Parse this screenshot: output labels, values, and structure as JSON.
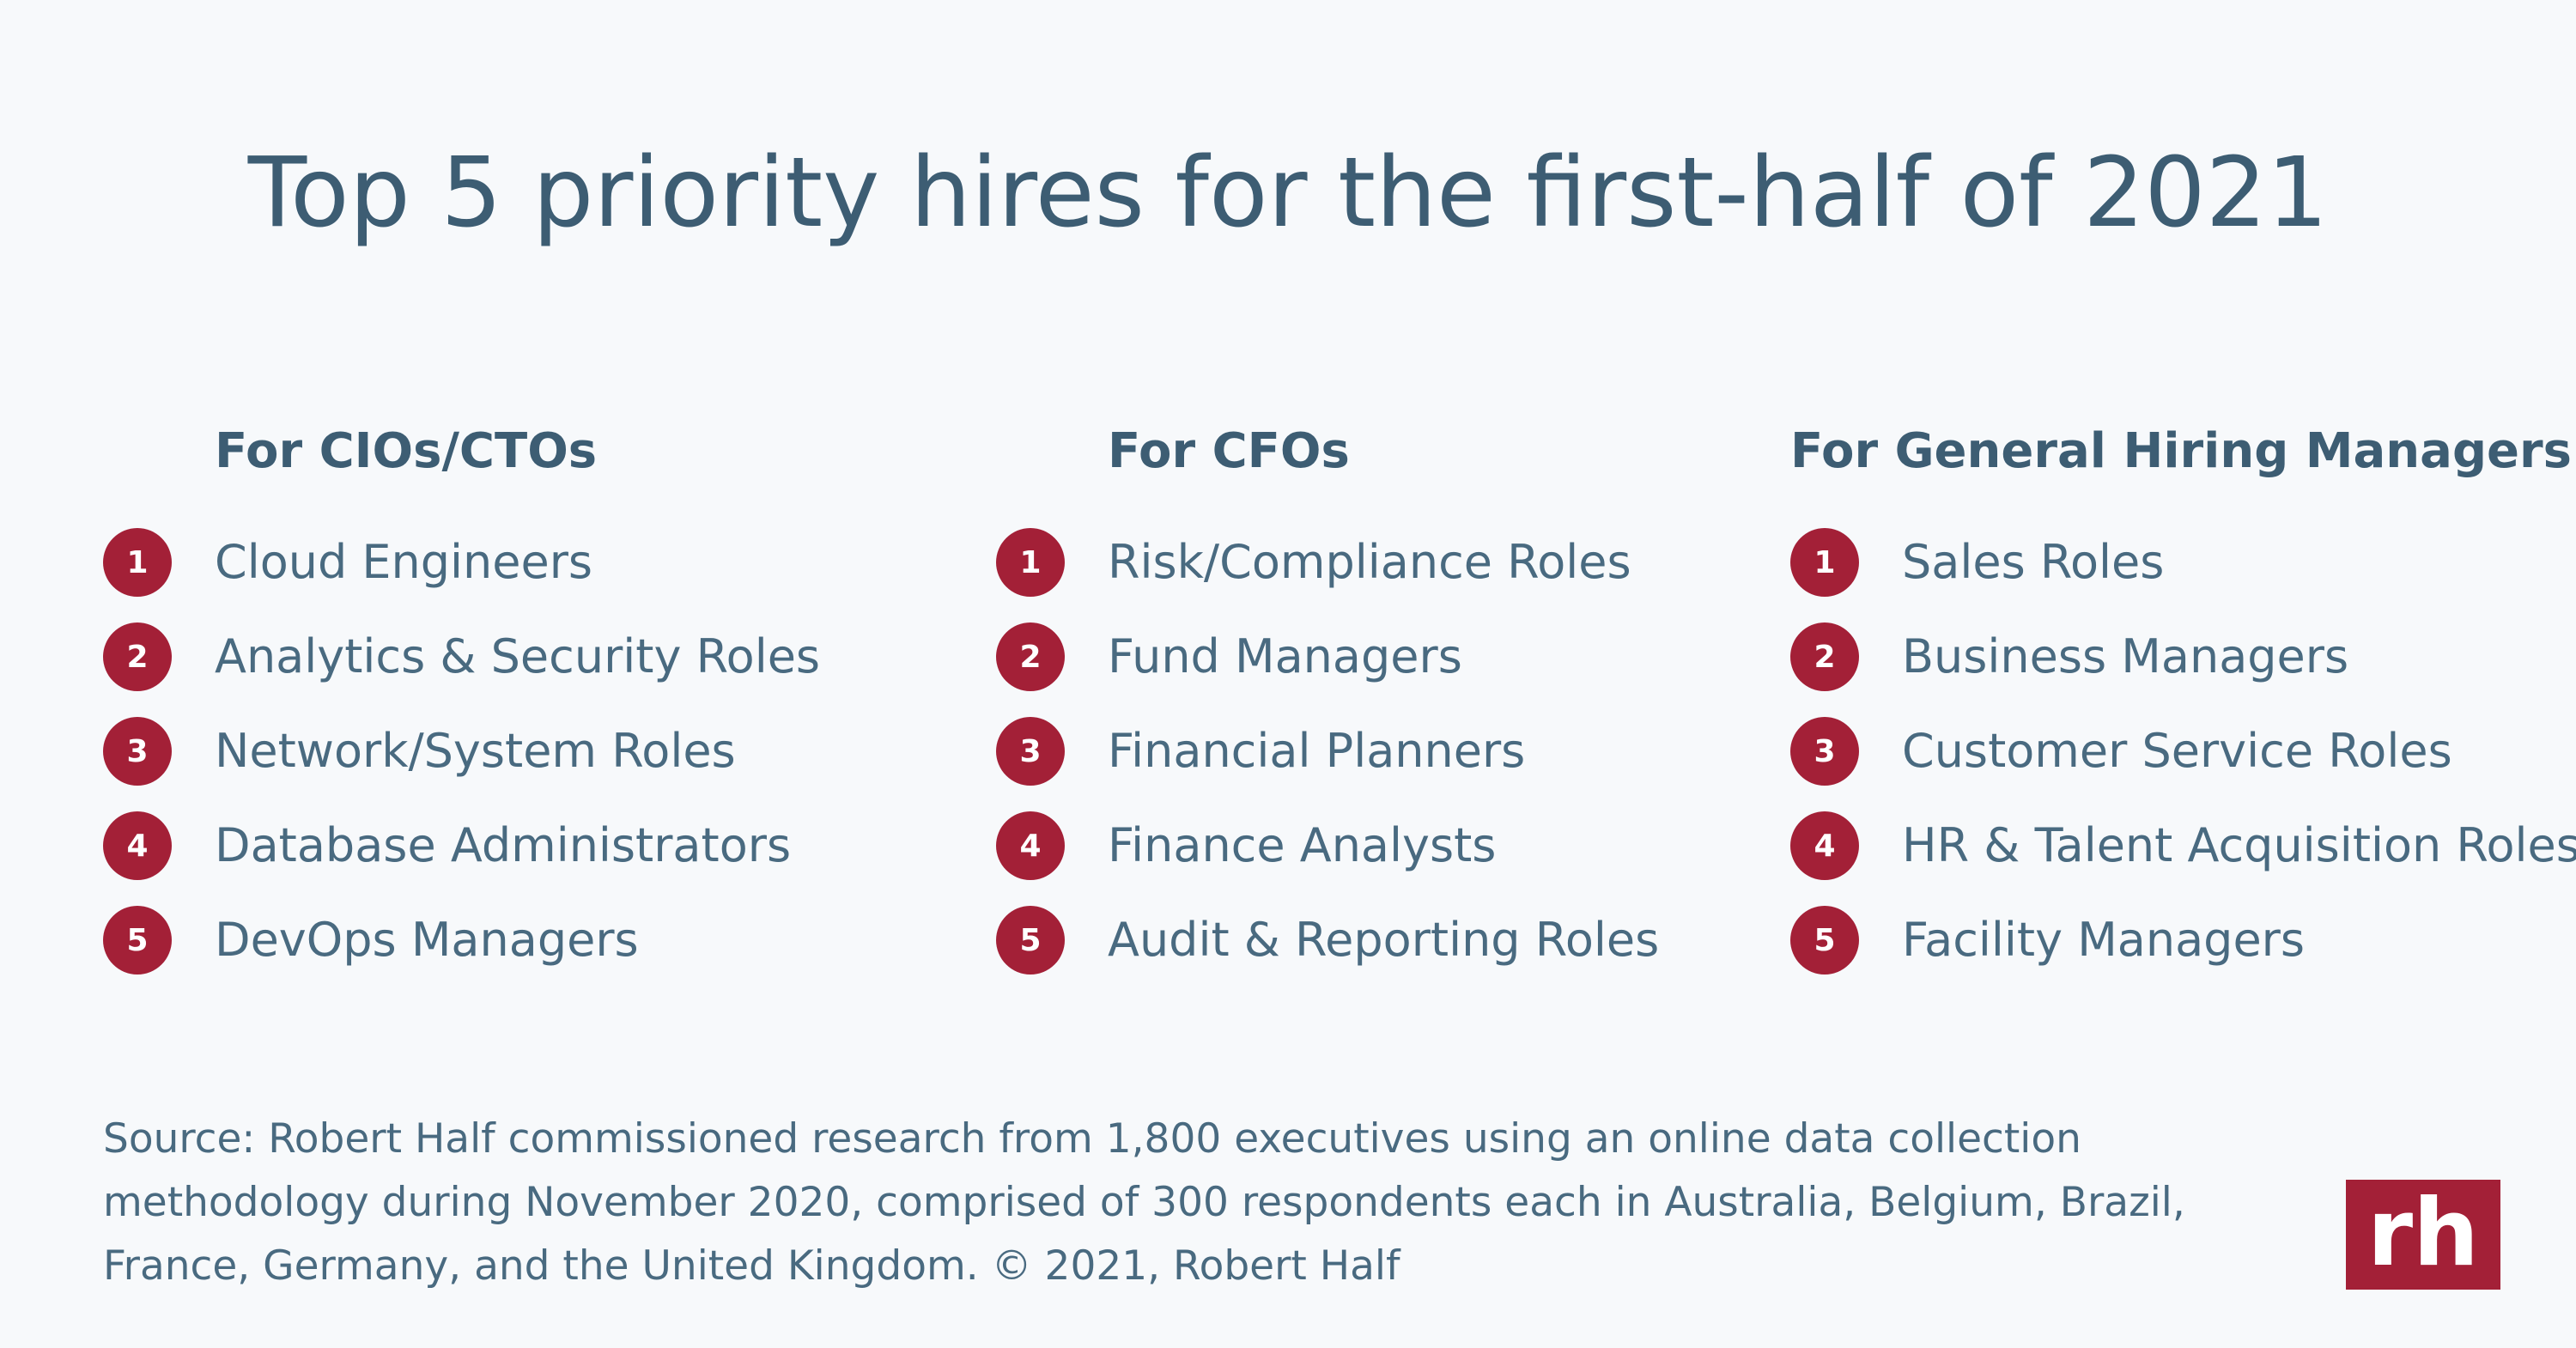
{
  "title": "Top 5 priority hires for the first-half of 2021",
  "colors": {
    "background": "#f7f9fb",
    "text": "#496a80",
    "heading": "#3d5d73",
    "accent": "#a32037"
  },
  "columns": [
    {
      "heading": "For CIOs/CTOs",
      "items": [
        {
          "rank": "1",
          "label": "Cloud Engineers"
        },
        {
          "rank": "2",
          "label": "Analytics & Security Roles"
        },
        {
          "rank": "3",
          "label": "Network/System Roles"
        },
        {
          "rank": "4",
          "label": "Database Administrators"
        },
        {
          "rank": "5",
          "label": "DevOps Managers"
        }
      ]
    },
    {
      "heading": "For CFOs",
      "items": [
        {
          "rank": "1",
          "label": "Risk/Compliance Roles"
        },
        {
          "rank": "2",
          "label": "Fund Managers"
        },
        {
          "rank": "3",
          "label": "Financial Planners"
        },
        {
          "rank": "4",
          "label": "Finance Analysts"
        },
        {
          "rank": "5",
          "label": "Audit & Reporting Roles"
        }
      ]
    },
    {
      "heading": "For General Hiring Managers",
      "items": [
        {
          "rank": "1",
          "label": "Sales Roles"
        },
        {
          "rank": "2",
          "label": "Business Managers"
        },
        {
          "rank": "3",
          "label": "Customer Service Roles"
        },
        {
          "rank": "4",
          "label": "HR & Talent Acquisition Roles"
        },
        {
          "rank": "5",
          "label": "Facility Managers"
        }
      ]
    }
  ],
  "source": "Source: Robert Half commissioned research from 1,800 executives using an online data collection methodology during November 2020, comprised of 300 respondents each in Australia, Belgium, Brazil, France, Germany, and the United Kingdom. © 2021, Robert Half",
  "logo": {
    "icon": "robert-half-logo-icon",
    "text": "rh"
  }
}
